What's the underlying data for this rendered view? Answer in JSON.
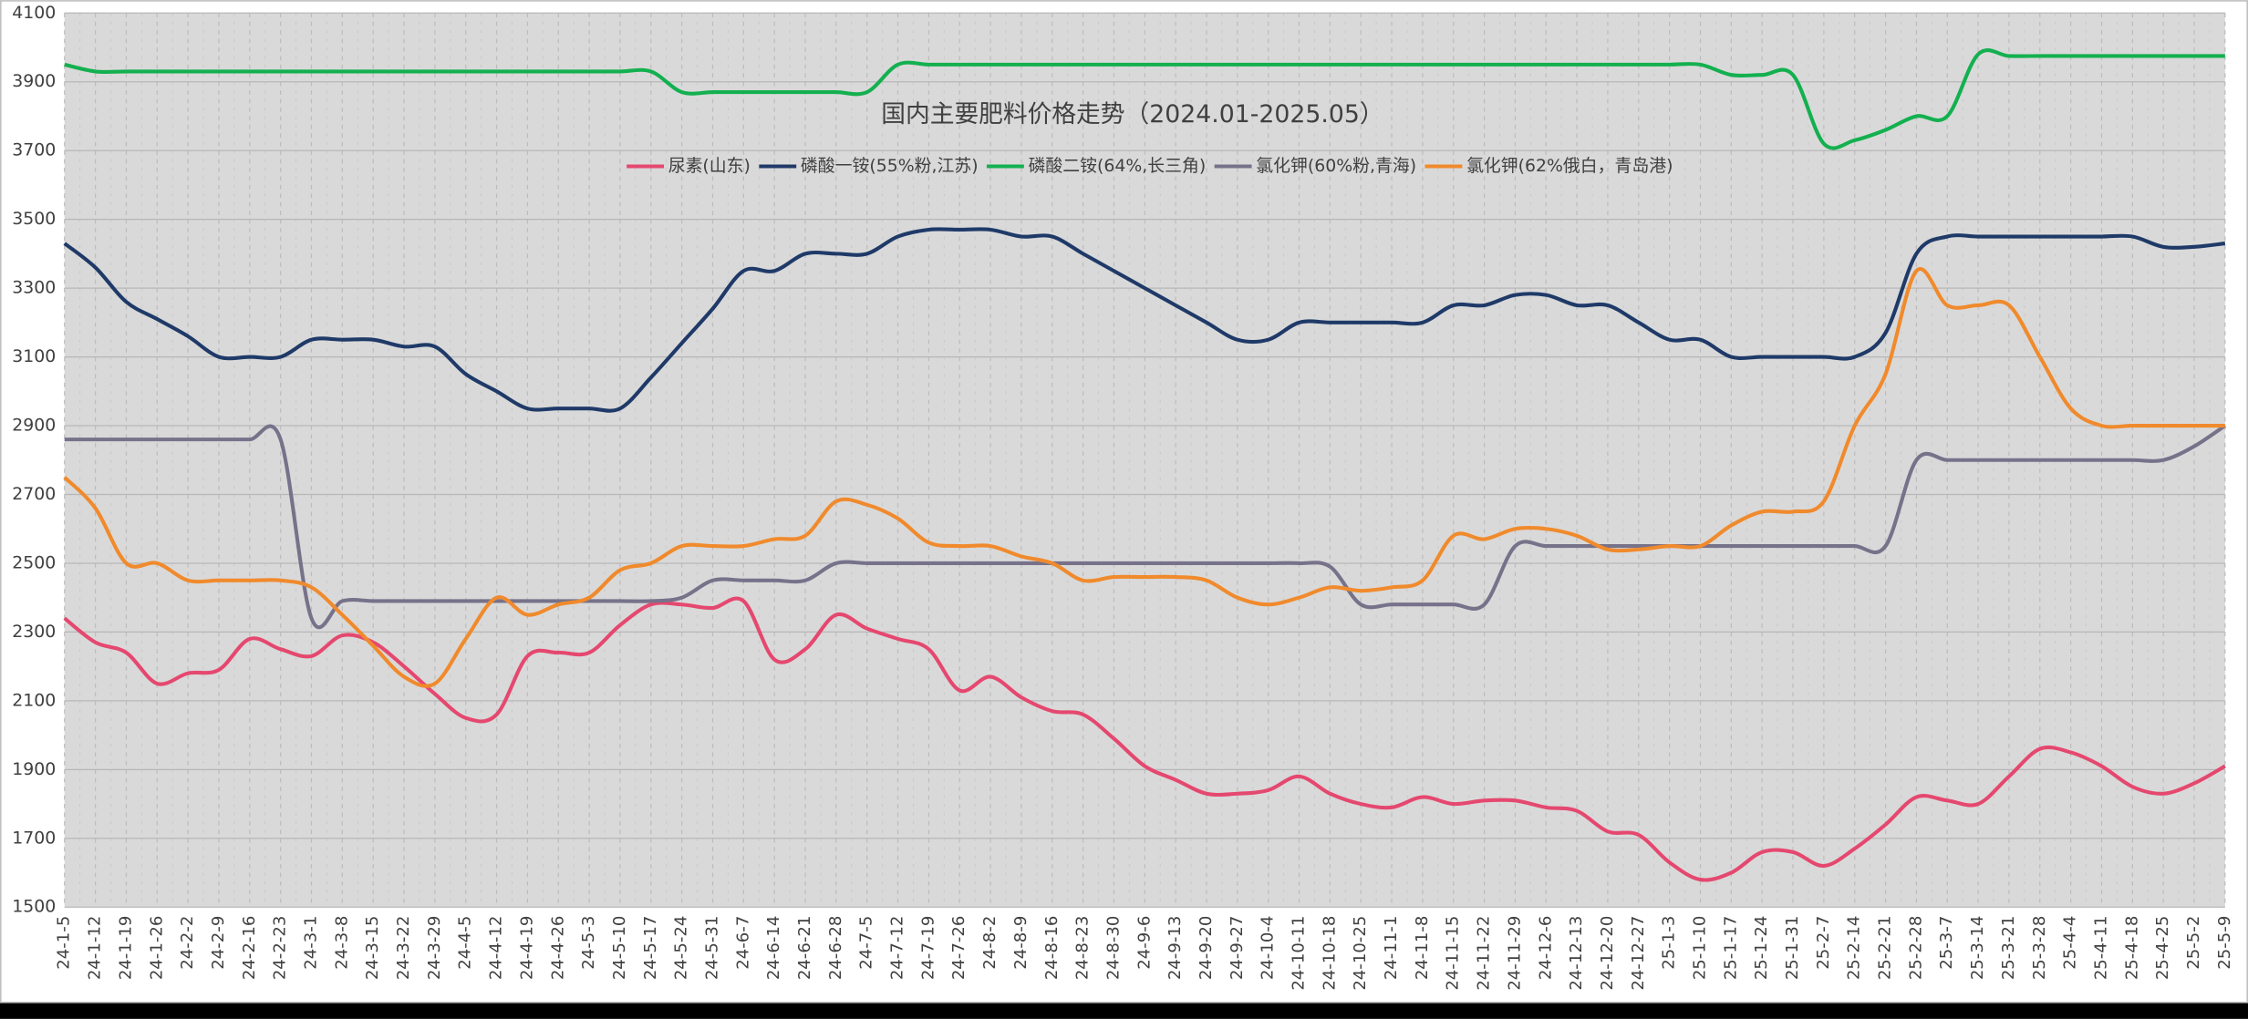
{
  "chart_data": {
    "type": "line",
    "title": "国内主要肥料价格走势（2024.01-2025.05）",
    "categories": [
      "24-1-5",
      "24-1-12",
      "24-1-19",
      "24-1-26",
      "24-2-2",
      "24-2-9",
      "24-2-16",
      "24-2-23",
      "24-3-1",
      "24-3-8",
      "24-3-15",
      "24-3-22",
      "24-3-29",
      "24-4-5",
      "24-4-12",
      "24-4-19",
      "24-4-26",
      "24-5-3",
      "24-5-10",
      "24-5-17",
      "24-5-24",
      "24-5-31",
      "24-6-7",
      "24-6-14",
      "24-6-21",
      "24-6-28",
      "24-7-5",
      "24-7-12",
      "24-7-19",
      "24-7-26",
      "24-8-2",
      "24-8-9",
      "24-8-16",
      "24-8-23",
      "24-8-30",
      "24-9-6",
      "24-9-13",
      "24-9-20",
      "24-9-27",
      "24-10-4",
      "24-10-11",
      "24-10-18",
      "24-10-25",
      "24-11-1",
      "24-11-8",
      "24-11-15",
      "24-11-22",
      "24-11-29",
      "24-12-6",
      "24-12-13",
      "24-12-20",
      "24-12-27",
      "25-1-3",
      "25-1-10",
      "25-1-17",
      "25-1-24",
      "25-1-31",
      "25-2-7",
      "25-2-14",
      "25-2-21",
      "25-2-28",
      "25-3-7",
      "25-3-14",
      "25-3-21",
      "25-3-28",
      "25-4-4",
      "25-4-11",
      "25-4-18",
      "25-4-25",
      "25-5-2",
      "25-5-9"
    ],
    "series": [
      {
        "name": "尿素(山东)",
        "color": "#e5486f",
        "values": [
          2340,
          2270,
          2240,
          2150,
          2180,
          2190,
          2280,
          2250,
          2230,
          2290,
          2270,
          2200,
          2120,
          2050,
          2060,
          2230,
          2240,
          2240,
          2320,
          2380,
          2380,
          2370,
          2390,
          2220,
          2250,
          2350,
          2310,
          2280,
          2250,
          2130,
          2170,
          2110,
          2070,
          2060,
          1990,
          1910,
          1870,
          1830,
          1830,
          1840,
          1880,
          1830,
          1800,
          1790,
          1820,
          1800,
          1810,
          1810,
          1790,
          1780,
          1720,
          1710,
          1630,
          1580,
          1600,
          1660,
          1660,
          1620,
          1670,
          1740,
          1820,
          1810,
          1800,
          1880,
          1960,
          1950,
          1910,
          1850,
          1830,
          1860,
          1910
        ]
      },
      {
        "name": "磷酸一铵(55%粉,江苏)",
        "color": "#1f3a68",
        "values": [
          3430,
          3360,
          3260,
          3210,
          3160,
          3100,
          3100,
          3100,
          3150,
          3150,
          3150,
          3130,
          3130,
          3050,
          3000,
          2950,
          2950,
          2950,
          2950,
          3040,
          3140,
          3240,
          3350,
          3350,
          3400,
          3400,
          3400,
          3450,
          3470,
          3470,
          3470,
          3450,
          3450,
          3400,
          3350,
          3300,
          3250,
          3200,
          3150,
          3150,
          3200,
          3200,
          3200,
          3200,
          3200,
          3250,
          3250,
          3280,
          3280,
          3250,
          3250,
          3200,
          3150,
          3150,
          3100,
          3100,
          3100,
          3100,
          3100,
          3170,
          3400,
          3450,
          3450,
          3450,
          3450,
          3450,
          3450,
          3450,
          3420,
          3420,
          3430
        ]
      },
      {
        "name": "磷酸二铵(64%,长三角)",
        "color": "#13b04f",
        "values": [
          3950,
          3930,
          3930,
          3930,
          3930,
          3930,
          3930,
          3930,
          3930,
          3930,
          3930,
          3930,
          3930,
          3930,
          3930,
          3930,
          3930,
          3930,
          3930,
          3930,
          3870,
          3870,
          3870,
          3870,
          3870,
          3870,
          3870,
          3950,
          3950,
          3950,
          3950,
          3950,
          3950,
          3950,
          3950,
          3950,
          3950,
          3950,
          3950,
          3950,
          3950,
          3950,
          3950,
          3950,
          3950,
          3950,
          3950,
          3950,
          3950,
          3950,
          3950,
          3950,
          3950,
          3950,
          3920,
          3920,
          3920,
          3720,
          3730,
          3760,
          3800,
          3800,
          3980,
          3975,
          3975,
          3975,
          3975,
          3975,
          3975,
          3975,
          3975
        ]
      },
      {
        "name": "氯化钾(60%粉,青海)",
        "color": "#77728a",
        "values": [
          2860,
          2860,
          2860,
          2860,
          2860,
          2860,
          2860,
          2860,
          2340,
          2390,
          2390,
          2390,
          2390,
          2390,
          2390,
          2390,
          2390,
          2390,
          2390,
          2390,
          2400,
          2450,
          2450,
          2450,
          2450,
          2500,
          2500,
          2500,
          2500,
          2500,
          2500,
          2500,
          2500,
          2500,
          2500,
          2500,
          2500,
          2500,
          2500,
          2500,
          2500,
          2490,
          2380,
          2380,
          2380,
          2380,
          2380,
          2550,
          2550,
          2550,
          2550,
          2550,
          2550,
          2550,
          2550,
          2550,
          2550,
          2550,
          2550,
          2550,
          2800,
          2800,
          2800,
          2800,
          2800,
          2800,
          2800,
          2800,
          2800,
          2840,
          2900
        ]
      },
      {
        "name": "氯化钾(62%俄白，青岛港)",
        "color": "#f08a2c",
        "values": [
          2750,
          2660,
          2500,
          2500,
          2450,
          2450,
          2450,
          2450,
          2430,
          2350,
          2260,
          2170,
          2150,
          2280,
          2400,
          2350,
          2380,
          2400,
          2480,
          2500,
          2550,
          2550,
          2550,
          2570,
          2580,
          2680,
          2670,
          2630,
          2560,
          2550,
          2550,
          2520,
          2500,
          2450,
          2460,
          2460,
          2460,
          2450,
          2400,
          2380,
          2400,
          2430,
          2420,
          2430,
          2450,
          2580,
          2570,
          2600,
          2600,
          2580,
          2540,
          2540,
          2550,
          2550,
          2610,
          2650,
          2650,
          2680,
          2900,
          3050,
          3350,
          3250,
          3250,
          3250,
          3100,
          2950,
          2900,
          2900,
          2900,
          2900,
          2900
        ]
      }
    ],
    "ylim": [
      1500,
      4100
    ],
    "yticks": [
      1500,
      1700,
      1900,
      2100,
      2300,
      2500,
      2700,
      2900,
      3100,
      3300,
      3500,
      3700,
      3900,
      4100
    ],
    "grid": true
  }
}
